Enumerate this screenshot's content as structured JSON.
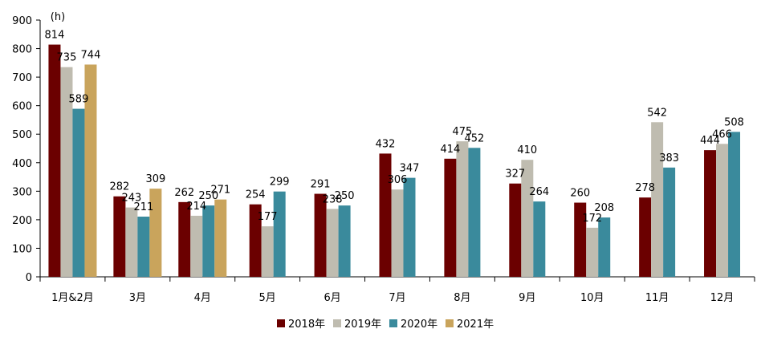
{
  "chart_data": {
    "type": "bar",
    "unit_label": "(h)",
    "categories": [
      "1月&2月",
      "3月",
      "4月",
      "5月",
      "6月",
      "7月",
      "8月",
      "9月",
      "10月",
      "11月",
      "12月"
    ],
    "series": [
      {
        "name": "2018年",
        "color": "#6b0000",
        "values": [
          814,
          282,
          262,
          254,
          291,
          432,
          414,
          327,
          260,
          278,
          444
        ]
      },
      {
        "name": "2019年",
        "color": "#bfbcb0",
        "values": [
          735,
          243,
          214,
          177,
          238,
          306,
          475,
          410,
          172,
          542,
          466
        ]
      },
      {
        "name": "2020年",
        "color": "#3a8a9c",
        "values": [
          589,
          211,
          250,
          299,
          250,
          347,
          452,
          264,
          208,
          383,
          508
        ]
      },
      {
        "name": "2021年",
        "color": "#c9a45c",
        "values": [
          744,
          309,
          271,
          null,
          null,
          null,
          null,
          null,
          null,
          null,
          null
        ]
      }
    ],
    "ylim": [
      0,
      900
    ],
    "yticks": [
      0,
      100,
      200,
      300,
      400,
      500,
      600,
      700,
      800,
      900
    ],
    "grid": false,
    "legend_position": "bottom"
  }
}
